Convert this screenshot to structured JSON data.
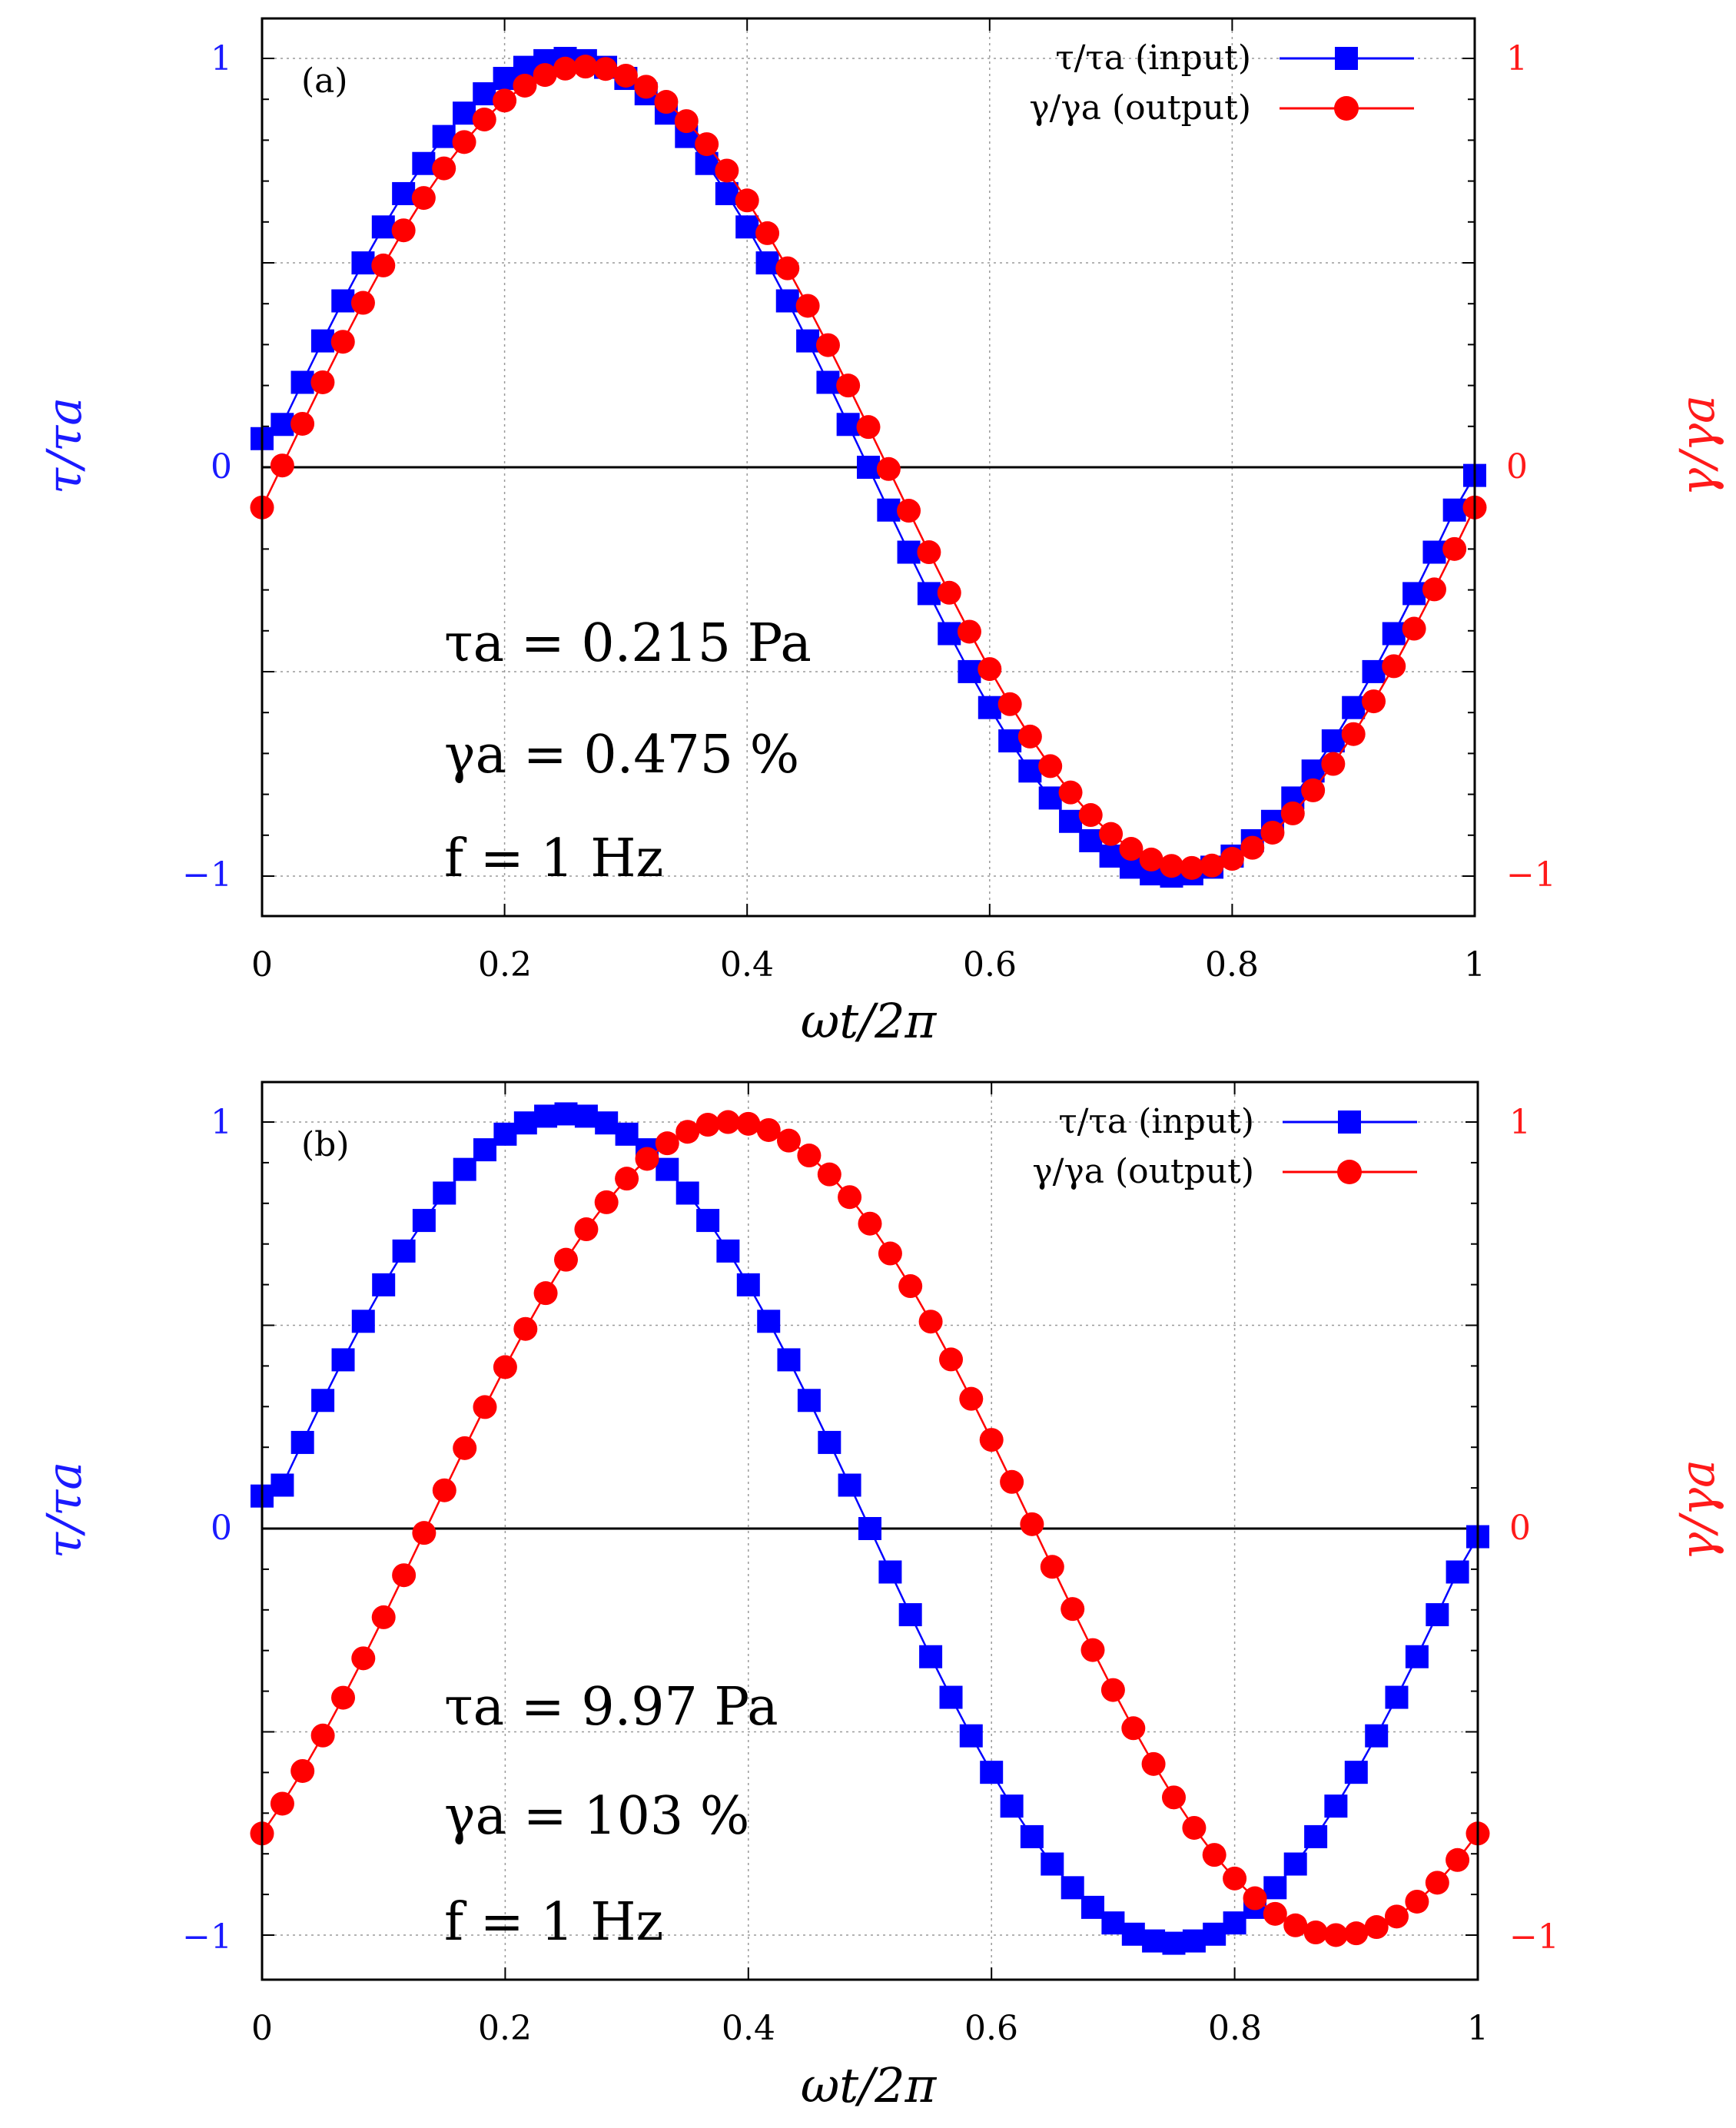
{
  "chart_data": [
    {
      "type": "line",
      "panel_label": "(a)",
      "xlabel": "ωt/2π",
      "ylabel_left": "τ/τa",
      "ylabel_right": "γ/γa",
      "xlim": [
        0,
        1
      ],
      "ylim": [
        -1.1,
        1.1
      ],
      "x_ticks": [
        "0",
        "0.2",
        "0.4",
        "0.6",
        "0.8",
        "1"
      ],
      "y_ticks_left": [
        "1",
        "0",
        "−1"
      ],
      "y_ticks_right": [
        "1",
        "0",
        "−1"
      ],
      "grid": true,
      "legend_position": "top-right",
      "annotations": [
        "τa = 0.215 Pa",
        "γa = 0.475 %",
        "f = 1 Hz"
      ],
      "series": [
        {
          "name": "τ/τa (input)",
          "marker": "square",
          "color": "#0000ff",
          "amplitude": 1.0,
          "phase_lag": 0.0,
          "offset_y": 0.07,
          "x_start": 0.0,
          "x_step": 0.0167,
          "x": [
            0.0,
            0.0167,
            0.0333,
            0.05,
            0.0667,
            0.0833,
            0.1,
            0.1167,
            0.1333,
            0.15,
            0.1667,
            0.1833,
            0.2,
            0.2167,
            0.2333,
            0.25,
            0.2667,
            0.2833,
            0.3,
            0.3167,
            0.3333,
            0.35,
            0.3667,
            0.3833,
            0.4,
            0.4167,
            0.4333,
            0.45,
            0.4667,
            0.4833,
            0.5,
            0.5167,
            0.5333,
            0.55,
            0.5667,
            0.5833,
            0.6,
            0.6167,
            0.6333,
            0.65,
            0.6667,
            0.6833,
            0.7,
            0.7167,
            0.7333,
            0.75,
            0.7667,
            0.7833,
            0.8,
            0.8167,
            0.8333,
            0.85,
            0.8667,
            0.8833,
            0.9,
            0.9167,
            0.9333,
            0.95,
            0.9667,
            0.9833,
            1.0
          ]
        },
        {
          "name": "γ/γa (output)",
          "marker": "circle",
          "color": "#ff0000",
          "amplitude": 0.98,
          "phase_lag": 0.016,
          "offset_y": 0.0,
          "x_start": 0.0,
          "x_step": 0.0167,
          "x": [
            0.0,
            0.0167,
            0.0333,
            0.05,
            0.0667,
            0.0833,
            0.1,
            0.1167,
            0.1333,
            0.15,
            0.1667,
            0.1833,
            0.2,
            0.2167,
            0.2333,
            0.25,
            0.2667,
            0.2833,
            0.3,
            0.3167,
            0.3333,
            0.35,
            0.3667,
            0.3833,
            0.4,
            0.4167,
            0.4333,
            0.45,
            0.4667,
            0.4833,
            0.5,
            0.5167,
            0.5333,
            0.55,
            0.5667,
            0.5833,
            0.6,
            0.6167,
            0.6333,
            0.65,
            0.6667,
            0.6833,
            0.7,
            0.7167,
            0.7333,
            0.75,
            0.7667,
            0.7833,
            0.8,
            0.8167,
            0.8333,
            0.85,
            0.8667,
            0.8833,
            0.9,
            0.9167,
            0.9333,
            0.95,
            0.9667,
            0.9833,
            1.0
          ]
        }
      ]
    },
    {
      "type": "line",
      "panel_label": "(b)",
      "xlabel": "ωt/2π",
      "ylabel_left": "τ/τa",
      "ylabel_right": "γ/γa",
      "xlim": [
        0,
        1
      ],
      "ylim": [
        -1.1,
        1.1
      ],
      "x_ticks": [
        "0",
        "0.2",
        "0.4",
        "0.6",
        "0.8",
        "1"
      ],
      "y_ticks_left": [
        "1",
        "0",
        "−1"
      ],
      "y_ticks_right": [
        "1",
        "0",
        "−1"
      ],
      "grid": true,
      "legend_position": "top-right",
      "annotations": [
        "τa = 9.97 Pa",
        "γa = 103 %",
        "f = 1 Hz"
      ],
      "series": [
        {
          "name": "τ/τa (input)",
          "marker": "square",
          "color": "#0000ff",
          "amplitude": 1.02,
          "phase_lag": 0.0,
          "offset_y": 0.08,
          "x_start": 0.0,
          "x_step": 0.0167,
          "x": [
            0.0,
            0.0167,
            0.0333,
            0.05,
            0.0667,
            0.0833,
            0.1,
            0.1167,
            0.1333,
            0.15,
            0.1667,
            0.1833,
            0.2,
            0.2167,
            0.2333,
            0.25,
            0.2667,
            0.2833,
            0.3,
            0.3167,
            0.3333,
            0.35,
            0.3667,
            0.3833,
            0.4,
            0.4167,
            0.4333,
            0.45,
            0.4667,
            0.4833,
            0.5,
            0.5167,
            0.5333,
            0.55,
            0.5667,
            0.5833,
            0.6,
            0.6167,
            0.6333,
            0.65,
            0.6667,
            0.6833,
            0.7,
            0.7167,
            0.7333,
            0.75,
            0.7667,
            0.7833,
            0.8,
            0.8167,
            0.8333,
            0.85,
            0.8667,
            0.8833,
            0.9,
            0.9167,
            0.9333,
            0.95,
            0.9667,
            0.9833,
            1.0
          ]
        },
        {
          "name": "γ/γa (output)",
          "marker": "circle",
          "color": "#ff0000",
          "amplitude": 1.0,
          "phase_lag": 0.135,
          "offset_y": 0.0,
          "x_start": 0.0,
          "x_step": 0.0167,
          "x": [
            0.0,
            0.0167,
            0.0333,
            0.05,
            0.0667,
            0.0833,
            0.1,
            0.1167,
            0.1333,
            0.15,
            0.1667,
            0.1833,
            0.2,
            0.2167,
            0.2333,
            0.25,
            0.2667,
            0.2833,
            0.3,
            0.3167,
            0.3333,
            0.35,
            0.3667,
            0.3833,
            0.4,
            0.4167,
            0.4333,
            0.45,
            0.4667,
            0.4833,
            0.5,
            0.5167,
            0.5333,
            0.55,
            0.5667,
            0.5833,
            0.6,
            0.6167,
            0.6333,
            0.65,
            0.6667,
            0.6833,
            0.7,
            0.7167,
            0.7333,
            0.75,
            0.7667,
            0.7833,
            0.8,
            0.8167,
            0.8333,
            0.85,
            0.8667,
            0.8833,
            0.9,
            0.9167,
            0.9333,
            0.95,
            0.9667,
            0.9833,
            1.0
          ]
        }
      ]
    }
  ]
}
